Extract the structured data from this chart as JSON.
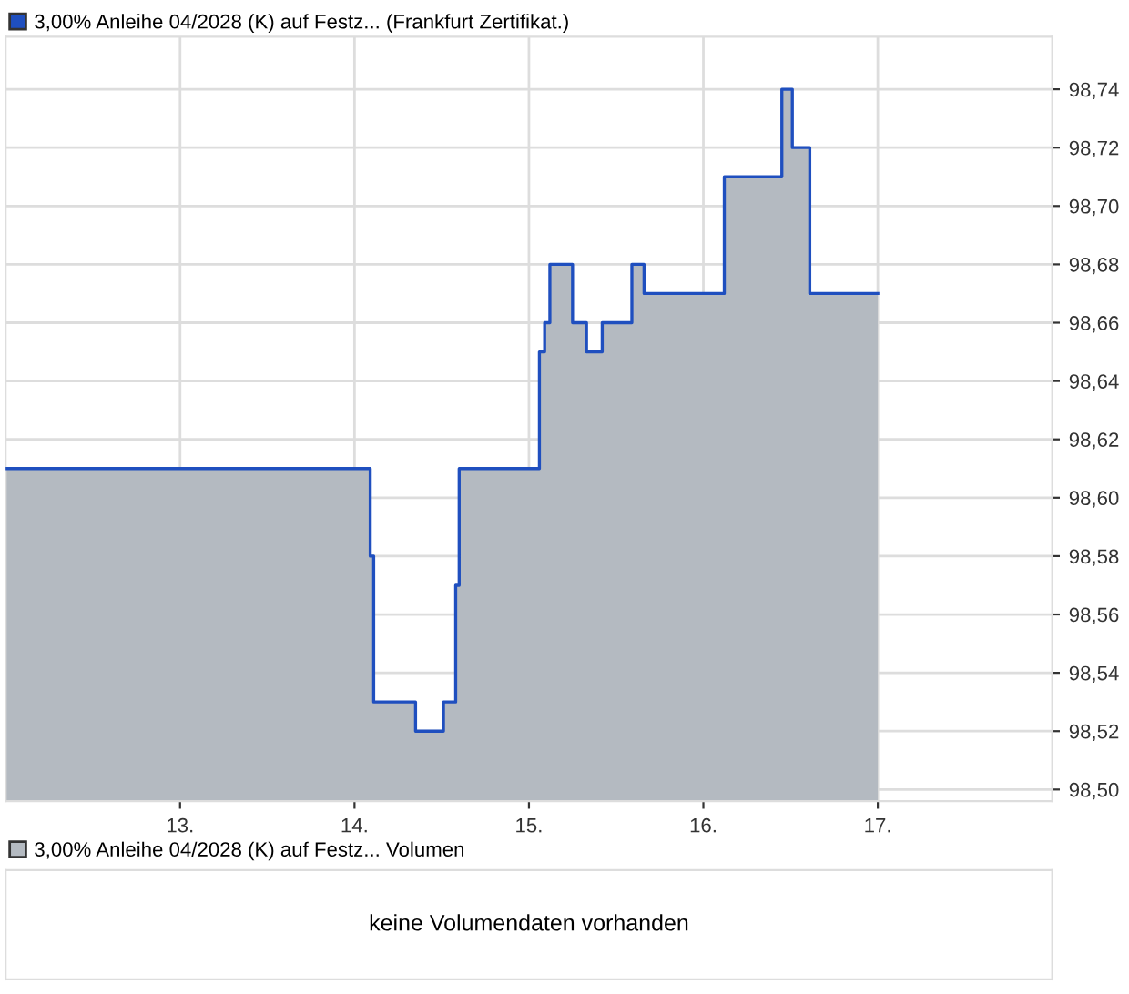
{
  "chart_data": [
    {
      "type": "area",
      "x": [
        12.0,
        14.09,
        14.11,
        14.35,
        14.51,
        14.58,
        14.6,
        15.06,
        15.09,
        15.12,
        15.25,
        15.33,
        15.42,
        15.59,
        15.66,
        16.12,
        16.45,
        16.51,
        16.61,
        17.0
      ],
      "series": [
        {
          "type": "area",
          "color": "#b4bac1",
          "values": [
            98.61,
            98.58,
            98.53,
            98.52,
            98.53,
            98.57,
            98.61,
            98.65,
            98.66,
            98.68,
            98.66,
            98.65,
            98.66,
            98.68,
            98.67,
            98.71,
            98.74,
            98.72,
            98.67,
            98.67
          ]
        },
        {
          "type": "step",
          "name": "3,00% Anleihe 04/2028 (K) auf Festz... (Frankfurt Zertifikat.)",
          "color": "#1f4fbf",
          "values": [
            98.61,
            98.58,
            98.53,
            98.52,
            98.53,
            98.57,
            98.61,
            98.65,
            98.66,
            98.68,
            98.66,
            98.65,
            98.66,
            98.68,
            98.67,
            98.71,
            98.74,
            98.72,
            98.67,
            98.67
          ]
        }
      ],
      "xlim": [
        12.0,
        18.0
      ],
      "xticks": [
        {
          "value": 13,
          "label": "13."
        },
        {
          "value": 14,
          "label": "14."
        },
        {
          "value": 15,
          "label": "15."
        },
        {
          "value": 16,
          "label": "16."
        },
        {
          "value": 17,
          "label": "17."
        }
      ],
      "ylim": [
        98.496,
        98.758
      ],
      "yticks": [
        {
          "value": 98.5,
          "label": "98,50"
        },
        {
          "value": 98.52,
          "label": "98,52"
        },
        {
          "value": 98.54,
          "label": "98,54"
        },
        {
          "value": 98.56,
          "label": "98,56"
        },
        {
          "value": 98.58,
          "label": "98,58"
        },
        {
          "value": 98.6,
          "label": "98,60"
        },
        {
          "value": 98.62,
          "label": "98,62"
        },
        {
          "value": 98.64,
          "label": "98,64"
        },
        {
          "value": 98.66,
          "label": "98,66"
        },
        {
          "value": 98.68,
          "label": "98,68"
        },
        {
          "value": 98.7,
          "label": "98,70"
        },
        {
          "value": 98.72,
          "label": "98,72"
        },
        {
          "value": 98.74,
          "label": "98,74"
        }
      ],
      "grid": true,
      "legend": "top left"
    },
    {
      "type": "other",
      "title": "3,00% Anleihe 04/2028 (K) auf Festz... Volumen",
      "annotations": [
        "keine Volumendaten vorhanden"
      ]
    }
  ]
}
